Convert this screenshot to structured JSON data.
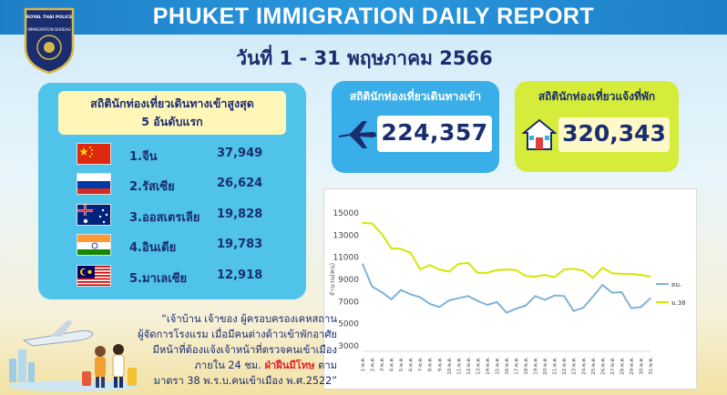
{
  "header": {
    "title": "PHUKET IMMIGRATION DAILY REPORT",
    "date_range": "วันที่ 1 - 31 พฤษภาคม 2566",
    "badge": {
      "top": "ROYAL THAI POLICE",
      "middle": "IMMIGRATION BUREAU"
    }
  },
  "top5": {
    "title_line1": "สถิตินักท่องเที่ยวเดินทางเข้าสูงสุด",
    "title_line2": "5 อันดับแรก",
    "countries": [
      {
        "name": "1.จีน",
        "value": "37,949",
        "flag": "china-flag"
      },
      {
        "name": "2.รัสเซีย",
        "value": "26,624",
        "flag": "russia-flag"
      },
      {
        "name": "3.ออสเตรเลีย",
        "value": "19,828",
        "flag": "australia-flag"
      },
      {
        "name": "4.อินเดีย",
        "value": "19,783",
        "flag": "india-flag"
      },
      {
        "name": "5.มาเลเซีย",
        "value": "12,918",
        "flag": "malaysia-flag"
      }
    ]
  },
  "arrivals": {
    "title": "สถิตินักท่องเที่ยวเดินทางเข้า",
    "value": "224,357",
    "icon": "airplane-icon"
  },
  "reports": {
    "title": "สถิตินักท่องเที่ยวแจ้งที่พัก",
    "value": "320,343",
    "icon": "house-icon"
  },
  "colors": {
    "header_blue": "#1d7fc8",
    "panel_blue": "#4fc3ea",
    "panel_green": "#d5ec3a",
    "navy": "#1a2d6e",
    "alert_red": "#e02222"
  },
  "notice": {
    "line1": "“เจ้าบ้าน เจ้าของ ผู้ครอบครองเคหสถาน",
    "line2": "ผู้จัดการโรงแรม เมื่อมีคนต่างด้าวเข้าพักอาศัย",
    "line3": "มีหน้าที่ต้องแจ้งเจ้าหน้าที่ตรวจคนเข้าเมือง",
    "line4_a": "ภายใน 24 ชม.",
    "line4_b": "ฝ่าฝืนมีโทษ",
    "line4_c": "ตาม",
    "line5": "มาตรา 38 พ.ร.บ.คนเข้าเมือง พ.ศ.2522”"
  },
  "chart_data": {
    "type": "line",
    "title": "",
    "xlabel": "",
    "ylabel": "จำนวน(คน)",
    "ylim": [
      3000,
      15000
    ],
    "yticks": [
      3000,
      5000,
      7000,
      9000,
      11000,
      13000,
      15000
    ],
    "grid": false,
    "legend_position": "right",
    "categories": [
      "1-พ.ค.",
      "2-พ.ค.",
      "3-พ.ค.",
      "4-พ.ค.",
      "5-พ.ค.",
      "6-พ.ค.",
      "7-พ.ค.",
      "8-พ.ค.",
      "9-พ.ค.",
      "10-พ.ค.",
      "11-พ.ค.",
      "12-พ.ค.",
      "13-พ.ค.",
      "14-พ.ค.",
      "15-พ.ค.",
      "16-พ.ค.",
      "17-พ.ค.",
      "18-พ.ค.",
      "19-พ.ค.",
      "20-พ.ค.",
      "21-พ.ค.",
      "22-พ.ค.",
      "23-พ.ค.",
      "24-พ.ค.",
      "25-พ.ค.",
      "26-พ.ค.",
      "27-พ.ค.",
      "28-พ.ค.",
      "29-พ.ค.",
      "30-พ.ค.",
      "31-พ.ค."
    ],
    "series": [
      {
        "name": "ม.38",
        "color": "#d4e600",
        "values": [
          14100,
          14050,
          13100,
          11800,
          11750,
          11400,
          9900,
          10300,
          9900,
          9700,
          10400,
          10500,
          9600,
          9600,
          9850,
          9900,
          9850,
          9300,
          9250,
          9400,
          9200,
          9900,
          9950,
          9800,
          9150,
          10050,
          9550,
          9500,
          9500,
          9400,
          9250
        ]
      },
      {
        "name": "ตม.",
        "color": "#7fb3d8",
        "values": [
          10400,
          8350,
          7850,
          7200,
          8050,
          7650,
          7400,
          6800,
          6500,
          7100,
          7300,
          7500,
          7050,
          6700,
          6950,
          6000,
          6350,
          6650,
          7500,
          7150,
          7550,
          7500,
          6150,
          6450,
          7450,
          8500,
          7800,
          7850,
          6400,
          6500,
          7300
        ]
      }
    ]
  }
}
